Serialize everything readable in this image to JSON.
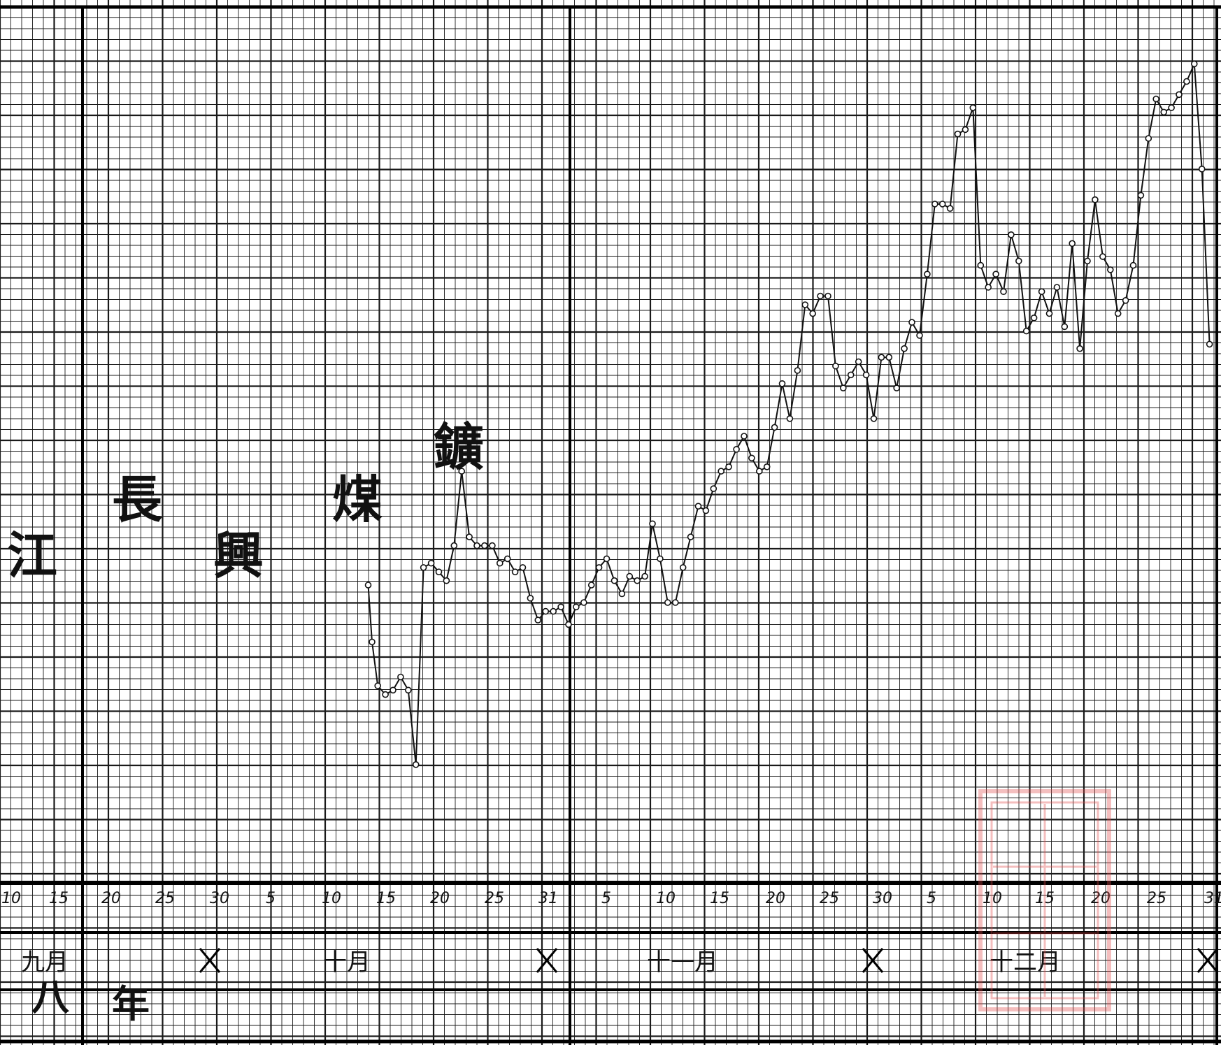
{
  "chart_data": {
    "type": "line",
    "title_chars": [
      "江",
      "長",
      "興",
      "煤",
      "鑛"
    ],
    "year_label": [
      "八",
      "年"
    ],
    "x_tick_labels": [
      "10",
      "15",
      "20",
      "25",
      "30",
      "5",
      "10",
      "15",
      "20",
      "25",
      "31",
      "5",
      "10",
      "15",
      "20",
      "25",
      "30",
      "5",
      "10",
      "15",
      "20",
      "25",
      "31"
    ],
    "month_labels": [
      "九月",
      "十月",
      "十一月",
      "十二月"
    ],
    "series": [
      {
        "values": [
          [
            9.65,
            34.0
          ],
          [
            9.75,
            27.5
          ],
          [
            9.9,
            22.5
          ],
          [
            10.1,
            21.5
          ],
          [
            10.3,
            22.0
          ],
          [
            10.5,
            23.5
          ],
          [
            10.7,
            22.0
          ],
          [
            10.9,
            13.5
          ],
          [
            11.1,
            36.0
          ],
          [
            11.3,
            36.5
          ],
          [
            11.5,
            35.5
          ],
          [
            11.7,
            34.5
          ],
          [
            11.9,
            38.5
          ],
          [
            12.1,
            47.0
          ],
          [
            12.3,
            39.5
          ],
          [
            12.5,
            38.5
          ],
          [
            12.7,
            38.5
          ],
          [
            12.9,
            38.5
          ],
          [
            13.1,
            36.5
          ],
          [
            13.3,
            37.0
          ],
          [
            13.5,
            35.5
          ],
          [
            13.7,
            36.0
          ],
          [
            13.9,
            32.5
          ],
          [
            14.1,
            30.0
          ],
          [
            14.3,
            31.0
          ],
          [
            14.5,
            31.0
          ],
          [
            14.7,
            31.5
          ],
          [
            14.9,
            29.5
          ],
          [
            15.1,
            31.5
          ],
          [
            15.3,
            32.0
          ],
          [
            15.5,
            34.0
          ],
          [
            15.7,
            36.0
          ],
          [
            15.9,
            37.0
          ],
          [
            16.1,
            34.5
          ],
          [
            16.3,
            33.0
          ],
          [
            16.5,
            35.0
          ],
          [
            16.7,
            34.5
          ],
          [
            16.9,
            35.0
          ],
          [
            17.1,
            41.0
          ],
          [
            17.3,
            37.0
          ],
          [
            17.5,
            32.0
          ],
          [
            17.7,
            32.0
          ],
          [
            17.9,
            36.0
          ],
          [
            18.1,
            39.5
          ],
          [
            18.3,
            43.0
          ],
          [
            18.5,
            42.5
          ],
          [
            18.7,
            45.0
          ],
          [
            18.9,
            47.0
          ],
          [
            19.1,
            47.5
          ],
          [
            19.3,
            49.5
          ],
          [
            19.5,
            51.0
          ],
          [
            19.7,
            48.5
          ],
          [
            19.9,
            47.0
          ],
          [
            20.1,
            47.5
          ],
          [
            20.3,
            52.0
          ],
          [
            20.5,
            57.0
          ],
          [
            20.7,
            53.0
          ],
          [
            20.9,
            58.5
          ],
          [
            21.1,
            66.0
          ],
          [
            21.3,
            65.0
          ],
          [
            21.5,
            67.0
          ],
          [
            21.7,
            67.0
          ],
          [
            21.9,
            59.0
          ],
          [
            22.1,
            56.5
          ],
          [
            22.3,
            58.0
          ],
          [
            22.5,
            59.5
          ],
          [
            22.7,
            58.0
          ],
          [
            22.9,
            53.0
          ],
          [
            23.1,
            60.0
          ],
          [
            23.3,
            60.0
          ],
          [
            23.5,
            56.5
          ],
          [
            23.7,
            61.0
          ],
          [
            23.9,
            64.0
          ],
          [
            24.1,
            62.5
          ],
          [
            24.3,
            69.5
          ],
          [
            24.5,
            77.5
          ],
          [
            24.7,
            77.5
          ],
          [
            24.9,
            77.0
          ],
          [
            25.1,
            85.5
          ],
          [
            25.3,
            86.0
          ],
          [
            25.5,
            88.5
          ],
          [
            25.7,
            70.5
          ],
          [
            25.9,
            68.0
          ],
          [
            26.1,
            69.5
          ],
          [
            26.3,
            67.5
          ],
          [
            26.5,
            74.0
          ],
          [
            26.7,
            71.0
          ],
          [
            26.9,
            63.0
          ],
          [
            27.1,
            64.5
          ],
          [
            27.3,
            67.5
          ],
          [
            27.5,
            65.0
          ],
          [
            27.7,
            68.0
          ],
          [
            27.9,
            63.5
          ],
          [
            28.1,
            73.0
          ],
          [
            28.3,
            61.0
          ],
          [
            28.5,
            71.0
          ],
          [
            28.7,
            78.0
          ],
          [
            28.9,
            71.5
          ],
          [
            29.1,
            70.0
          ],
          [
            29.3,
            65.0
          ],
          [
            29.5,
            66.5
          ],
          [
            29.7,
            70.5
          ],
          [
            29.9,
            78.5
          ],
          [
            30.1,
            85.0
          ],
          [
            30.3,
            89.5
          ],
          [
            30.5,
            88.0
          ],
          [
            30.7,
            88.5
          ],
          [
            30.9,
            90.0
          ],
          [
            31.1,
            91.5
          ],
          [
            31.3,
            93.5
          ],
          [
            31.5,
            81.5
          ],
          [
            31.7,
            61.5
          ]
        ]
      }
    ],
    "xlim": [
      0,
      32
    ],
    "ylim": [
      0,
      100
    ],
    "grid": true
  }
}
